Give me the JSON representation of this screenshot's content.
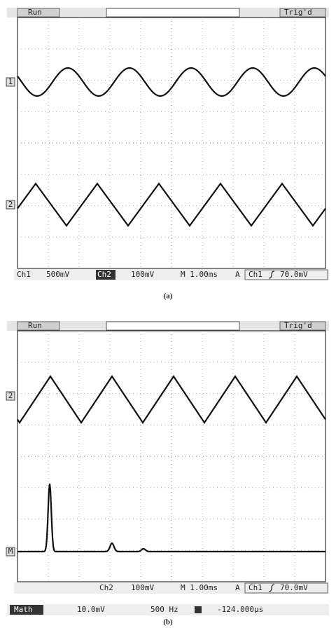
{
  "panel_a": {
    "status": "Run",
    "trigger": "Trig'd",
    "channel_markers": [
      "1",
      "2"
    ],
    "readout": {
      "ch1": "Ch1",
      "ch1_scale": "500mV",
      "ch2": "Ch2",
      "ch2_scale": "100mV",
      "timebase": "M 1.00ms",
      "trigger_mode": "A",
      "trigger_source": "Ch1",
      "trigger_level": "70.0mV"
    },
    "caption": "(a)"
  },
  "panel_b": {
    "status": "Run",
    "trigger": "Trig'd",
    "channel_markers": [
      "2",
      "M"
    ],
    "readout": {
      "ch2": "Ch2",
      "ch2_scale": "100mV",
      "timebase": "M 1.00ms",
      "trigger_mode": "A",
      "trigger_source": "Ch1",
      "trigger_level": "70.0mV"
    },
    "math": {
      "label": "Math",
      "scale": "10.0mV",
      "frequency": "500 Hz",
      "position": "-124.000µs"
    },
    "caption": "(b)"
  }
}
